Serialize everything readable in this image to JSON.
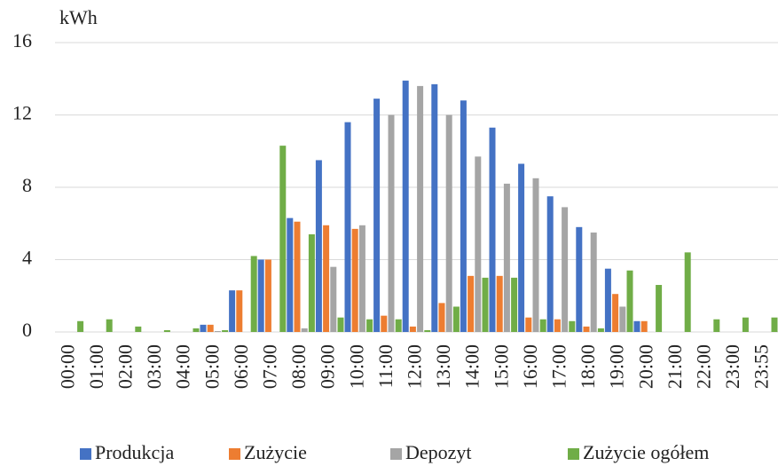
{
  "chart_data": {
    "type": "bar",
    "y_label": "kWh",
    "categories": [
      "00:00",
      "01:00",
      "02:00",
      "03:00",
      "04:00",
      "05:00",
      "06:00",
      "07:00",
      "08:00",
      "09:00",
      "10:00",
      "11:00",
      "12:00",
      "13:00",
      "14:00",
      "15:00",
      "16:00",
      "17:00",
      "18:00",
      "19:00",
      "20:00",
      "21:00",
      "22:00",
      "23:00",
      "23:55"
    ],
    "series": [
      {
        "name": "Produkcja",
        "color": "#4472c4",
        "values": [
          0,
          0,
          0,
          0,
          0,
          0.4,
          2.3,
          4.0,
          6.3,
          9.5,
          11.6,
          12.9,
          13.9,
          13.7,
          12.8,
          11.3,
          9.3,
          7.5,
          5.8,
          3.5,
          0.6,
          0,
          0,
          0,
          0
        ]
      },
      {
        "name": "Zużycie",
        "color": "#ed7d31",
        "values": [
          0,
          0,
          0,
          0,
          0,
          0.4,
          2.3,
          4.0,
          6.1,
          5.9,
          5.7,
          0.9,
          0.3,
          1.6,
          3.1,
          3.1,
          0.8,
          0.7,
          0.3,
          2.1,
          0.6,
          0,
          0,
          0,
          0
        ]
      },
      {
        "name": "Depozyt",
        "color": "#a5a5a5",
        "values": [
          0,
          0,
          0,
          0,
          0,
          0.05,
          0,
          0,
          0.2,
          3.6,
          5.9,
          12.0,
          13.6,
          12.0,
          9.7,
          8.2,
          8.5,
          6.9,
          5.5,
          1.4,
          0,
          0,
          0,
          0,
          0
        ]
      },
      {
        "name": "Zużycie ogółem",
        "color": "#70ad47",
        "values": [
          0.6,
          0.7,
          0.3,
          0.1,
          0.2,
          0.1,
          4.2,
          10.3,
          5.4,
          0.8,
          0.7,
          0.7,
          0.1,
          1.4,
          3.0,
          3.0,
          0.7,
          0.6,
          0.2,
          3.4,
          2.6,
          4.4,
          0.7,
          0.8,
          0.8
        ]
      }
    ],
    "ylim": [
      0,
      16
    ],
    "yticks": [
      0,
      4,
      8,
      12,
      16
    ],
    "grid": true
  }
}
